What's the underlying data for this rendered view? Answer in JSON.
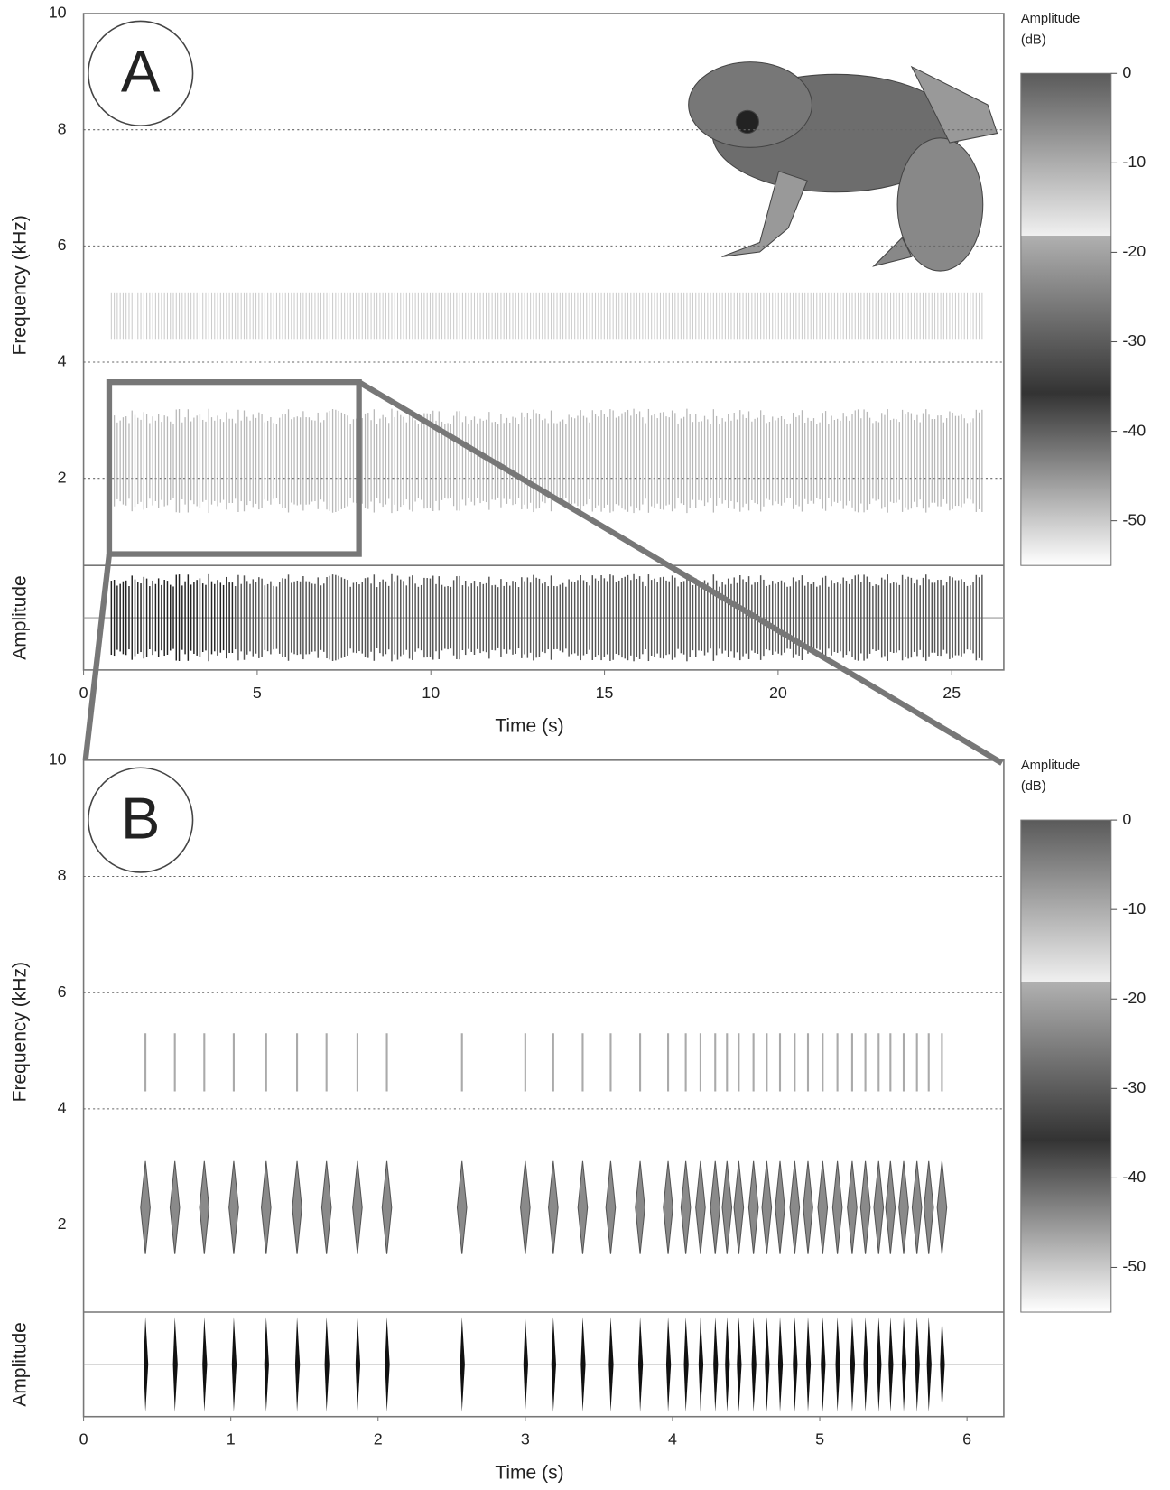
{
  "chart_data": [
    {
      "type": "spectrogram",
      "label": "A",
      "xlabel": "Time (s)",
      "ylabel": "Frequency (kHz)",
      "amp_label": "Amplitude",
      "xlim": [
        0,
        26.5
      ],
      "xticks": [
        0,
        5,
        10,
        15,
        20,
        25
      ],
      "ylim": [
        0.5,
        10
      ],
      "yticks": [
        2,
        4,
        6,
        8,
        10
      ],
      "grid": true,
      "call_span": [
        0.8,
        25.9
      ],
      "colorbar": {
        "title": [
          "Amplitude",
          "(dB)"
        ],
        "lim": [
          -55,
          0
        ],
        "ticks": [
          0,
          -10,
          -20,
          -30,
          -40,
          -50
        ]
      }
    },
    {
      "type": "spectrogram",
      "label": "B",
      "xlabel": "Time (s)",
      "ylabel": "Frequency (kHz)",
      "amp_label": "Amplitude",
      "xlim": [
        0,
        6.25
      ],
      "xticks": [
        0,
        1,
        2,
        3,
        4,
        5,
        6
      ],
      "ylim": [
        0.5,
        10
      ],
      "yticks": [
        2,
        4,
        6,
        8,
        10
      ],
      "grid": true,
      "pulse_times": [
        0.42,
        0.62,
        0.82,
        1.02,
        1.24,
        1.45,
        1.65,
        1.86,
        2.06,
        2.57,
        3.0,
        3.19,
        3.39,
        3.58,
        3.78,
        3.97,
        4.09,
        4.19,
        4.29,
        4.37,
        4.45,
        4.55,
        4.64,
        4.73,
        4.83,
        4.92,
        5.02,
        5.12,
        5.22,
        5.31,
        5.4,
        5.48,
        5.57,
        5.66,
        5.74,
        5.83
      ],
      "colorbar": {
        "title": [
          "Amplitude",
          "(dB)"
        ],
        "lim": [
          -55,
          0
        ],
        "ticks": [
          0,
          -10,
          -20,
          -30,
          -40,
          -50
        ]
      }
    }
  ]
}
